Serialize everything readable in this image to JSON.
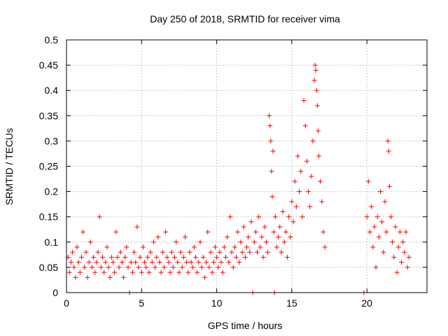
{
  "chart_data": {
    "type": "scatter",
    "title": "Day 250 of 2018, SRMTID for receiver vima",
    "xlabel": "GPS time / hours",
    "ylabel": "SRMTID / TECUs",
    "xlim": [
      0,
      24
    ],
    "ylim": [
      0,
      0.5
    ],
    "xticks": [
      0,
      5,
      10,
      15,
      20
    ],
    "xtick_labels": [
      "0",
      "5",
      "10",
      "15",
      "20"
    ],
    "yticks": [
      0,
      0.05,
      0.1,
      0.15,
      0.2,
      0.25,
      0.3,
      0.35,
      0.4,
      0.45,
      0.5
    ],
    "ytick_labels": [
      "0",
      "0.05",
      "0.1",
      "0.15",
      "0.2",
      "0.25",
      "0.3",
      "0.35",
      "0.4",
      "0.45",
      "0.5"
    ],
    "grid": true,
    "marker": "+",
    "color": "#ff0000",
    "series": [
      {
        "name": "SRMTID",
        "points": [
          [
            0.1,
            0.07
          ],
          [
            0.2,
            0.04
          ],
          [
            0.3,
            0.06
          ],
          [
            0.4,
            0.08
          ],
          [
            0.5,
            0.05
          ],
          [
            0.6,
            0.03
          ],
          [
            0.7,
            0.09
          ],
          [
            0.8,
            0.06
          ],
          [
            0.9,
            0.04
          ],
          [
            1.0,
            0.07
          ],
          [
            1.1,
            0.12
          ],
          [
            1.2,
            0.05
          ],
          [
            1.3,
            0.08
          ],
          [
            1.4,
            0.03
          ],
          [
            1.5,
            0.06
          ],
          [
            1.6,
            0.1
          ],
          [
            1.7,
            0.05
          ],
          [
            1.8,
            0.07
          ],
          [
            1.9,
            0.04
          ],
          [
            2.0,
            0.06
          ],
          [
            2.1,
            0.08
          ],
          [
            2.2,
            0.15
          ],
          [
            2.3,
            0.05
          ],
          [
            2.4,
            0.07
          ],
          [
            2.5,
            0.04
          ],
          [
            2.6,
            0.06
          ],
          [
            2.7,
            0.09
          ],
          [
            2.8,
            0.05
          ],
          [
            2.9,
            0.03
          ],
          [
            3.0,
            0.07
          ],
          [
            3.1,
            0.06
          ],
          [
            3.2,
            0.04
          ],
          [
            3.3,
            0.12
          ],
          [
            3.4,
            0.07
          ],
          [
            3.5,
            0.05
          ],
          [
            3.6,
            0.08
          ],
          [
            3.7,
            0.06
          ],
          [
            3.8,
            0.03
          ],
          [
            3.9,
            0.07
          ],
          [
            4.0,
            0.09
          ],
          [
            4.1,
            0.05
          ],
          [
            4.2,
            0.0
          ],
          [
            4.3,
            0.06
          ],
          [
            4.4,
            0.04
          ],
          [
            4.5,
            0.08
          ],
          [
            4.6,
            0.06
          ],
          [
            4.7,
            0.13
          ],
          [
            4.8,
            0.05
          ],
          [
            4.9,
            0.07
          ],
          [
            5.0,
            0.04
          ],
          [
            5.1,
            0.09
          ],
          [
            5.2,
            0.06
          ],
          [
            5.3,
            0.05
          ],
          [
            5.4,
            0.07
          ],
          [
            5.5,
            0.04
          ],
          [
            5.6,
            0.08
          ],
          [
            5.7,
            0.06
          ],
          [
            5.8,
            0.1
          ],
          [
            5.9,
            0.05
          ],
          [
            6.0,
            0.07
          ],
          [
            6.1,
            0.11
          ],
          [
            6.2,
            0.06
          ],
          [
            6.3,
            0.04
          ],
          [
            6.4,
            0.08
          ],
          [
            6.5,
            0.05
          ],
          [
            6.6,
            0.12
          ],
          [
            6.7,
            0.07
          ],
          [
            6.8,
            0.06
          ],
          [
            6.9,
            0.04
          ],
          [
            7.0,
            0.08
          ],
          [
            7.1,
            0.05
          ],
          [
            7.2,
            0.07
          ],
          [
            7.3,
            0.1
          ],
          [
            7.4,
            0.06
          ],
          [
            7.5,
            0.04
          ],
          [
            7.6,
            0.08
          ],
          [
            7.7,
            0.05
          ],
          [
            7.8,
            0.07
          ],
          [
            7.9,
            0.11
          ],
          [
            8.0,
            0.06
          ],
          [
            8.1,
            0.04
          ],
          [
            8.2,
            0.08
          ],
          [
            8.3,
            0.06
          ],
          [
            8.4,
            0.05
          ],
          [
            8.5,
            0.09
          ],
          [
            8.6,
            0.07
          ],
          [
            8.7,
            0.04
          ],
          [
            8.8,
            0.06
          ],
          [
            8.9,
            0.1
          ],
          [
            9.0,
            0.05
          ],
          [
            9.1,
            0.07
          ],
          [
            9.2,
            0.03
          ],
          [
            9.3,
            0.06
          ],
          [
            9.4,
            0.12
          ],
          [
            9.5,
            0.05
          ],
          [
            9.6,
            0.08
          ],
          [
            9.7,
            0.04
          ],
          [
            9.8,
            0.06
          ],
          [
            9.9,
            0.09
          ],
          [
            10.0,
            0.07
          ],
          [
            10.1,
            0.05
          ],
          [
            10.2,
            0.08
          ],
          [
            10.3,
            0.06
          ],
          [
            10.4,
            0.04
          ],
          [
            10.5,
            0.09
          ],
          [
            10.6,
            0.07
          ],
          [
            10.7,
            0.11
          ],
          [
            10.8,
            0.06
          ],
          [
            10.9,
            0.15
          ],
          [
            11.0,
            0.08
          ],
          [
            11.1,
            0.05
          ],
          [
            11.2,
            0.09
          ],
          [
            11.3,
            0.07
          ],
          [
            11.4,
            0.12
          ],
          [
            11.5,
            0.06
          ],
          [
            11.6,
            0.1
          ],
          [
            11.7,
            0.08
          ],
          [
            11.8,
            0.13
          ],
          [
            11.9,
            0.07
          ],
          [
            12.0,
            0.09
          ],
          [
            12.1,
            0.11
          ],
          [
            12.2,
            0.08
          ],
          [
            12.3,
            0.14
          ],
          [
            12.4,
            0.0
          ],
          [
            12.5,
            0.1
          ],
          [
            12.6,
            0.12
          ],
          [
            12.7,
            0.08
          ],
          [
            12.8,
            0.15
          ],
          [
            12.9,
            0.09
          ],
          [
            13.0,
            0.11
          ],
          [
            13.1,
            0.07
          ],
          [
            13.2,
            0.13
          ],
          [
            13.3,
            0.1
          ],
          [
            13.4,
            0.08
          ],
          [
            13.5,
            0.35
          ],
          [
            13.55,
            0.33
          ],
          [
            13.6,
            0.3
          ],
          [
            13.65,
            0.24
          ],
          [
            13.7,
            0.19
          ],
          [
            13.75,
            0.28
          ],
          [
            13.8,
            0.12
          ],
          [
            13.85,
            0.0
          ],
          [
            13.9,
            0.15
          ],
          [
            14.0,
            0.09
          ],
          [
            14.1,
            0.11
          ],
          [
            14.2,
            0.13
          ],
          [
            14.3,
            0.08
          ],
          [
            14.4,
            0.16
          ],
          [
            14.5,
            0.1
          ],
          [
            14.6,
            0.12
          ],
          [
            14.7,
            0.07
          ],
          [
            14.8,
            0.15
          ],
          [
            14.9,
            0.11
          ],
          [
            15.0,
            0.18
          ],
          [
            15.1,
            0.14
          ],
          [
            15.2,
            0.22
          ],
          [
            15.3,
            0.17
          ],
          [
            15.4,
            0.27
          ],
          [
            15.5,
            0.2
          ],
          [
            15.6,
            0.24
          ],
          [
            15.7,
            0.15
          ],
          [
            15.8,
            0.38
          ],
          [
            15.9,
            0.33
          ],
          [
            16.0,
            0.26
          ],
          [
            16.1,
            0.2
          ],
          [
            16.2,
            0.17
          ],
          [
            16.3,
            0.23
          ],
          [
            16.4,
            0.3
          ],
          [
            16.5,
            0.42
          ],
          [
            16.55,
            0.45
          ],
          [
            16.6,
            0.44
          ],
          [
            16.65,
            0.4
          ],
          [
            16.7,
            0.37
          ],
          [
            16.75,
            0.32
          ],
          [
            16.8,
            0.27
          ],
          [
            16.9,
            0.22
          ],
          [
            17.0,
            0.18
          ],
          [
            17.1,
            0.12
          ],
          [
            17.2,
            0.09
          ],
          [
            19.8,
            0.0
          ],
          [
            20.0,
            0.15
          ],
          [
            20.1,
            0.22
          ],
          [
            20.2,
            0.12
          ],
          [
            20.3,
            0.17
          ],
          [
            20.4,
            0.09
          ],
          [
            20.5,
            0.13
          ],
          [
            20.6,
            0.05
          ],
          [
            20.7,
            0.15
          ],
          [
            20.8,
            0.11
          ],
          [
            20.9,
            0.2
          ],
          [
            21.0,
            0.14
          ],
          [
            21.1,
            0.08
          ],
          [
            21.2,
            0.18
          ],
          [
            21.3,
            0.12
          ],
          [
            21.4,
            0.3
          ],
          [
            21.45,
            0.28
          ],
          [
            21.5,
            0.21
          ],
          [
            21.6,
            0.15
          ],
          [
            21.7,
            0.1
          ],
          [
            21.8,
            0.07
          ],
          [
            21.9,
            0.13
          ],
          [
            22.0,
            0.04
          ],
          [
            22.1,
            0.09
          ],
          [
            22.2,
            0.12
          ],
          [
            22.3,
            0.06
          ],
          [
            22.4,
            0.1
          ],
          [
            22.5,
            0.08
          ],
          [
            22.6,
            0.12
          ],
          [
            22.7,
            0.05
          ],
          [
            22.8,
            0.07
          ]
        ]
      }
    ]
  }
}
